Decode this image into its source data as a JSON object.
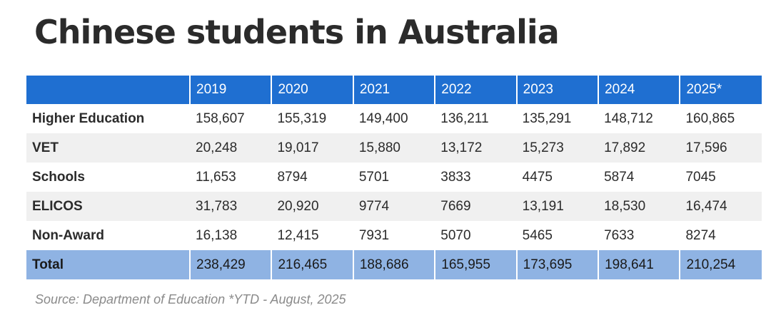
{
  "title": "Chinese students in Australia",
  "table": {
    "header": [
      "",
      "2019",
      "2020",
      "2021",
      "2022",
      "2023",
      "2024",
      "2025*"
    ],
    "rows": [
      {
        "label": "Higher Education",
        "values": [
          "158,607",
          "155,319",
          "149,400",
          "136,211",
          "135,291",
          "148,712",
          "160,865"
        ]
      },
      {
        "label": "VET",
        "values": [
          "20,248",
          "19,017",
          "15,880",
          "13,172",
          "15,273",
          "17,892",
          "17,596"
        ]
      },
      {
        "label": "Schools",
        "values": [
          "11,653",
          "8794",
          "5701",
          "3833",
          "4475",
          "5874",
          "7045"
        ]
      },
      {
        "label": "ELICOS",
        "values": [
          "31,783",
          "20,920",
          "9774",
          "7669",
          "13,191",
          "18,530",
          "16,474"
        ]
      },
      {
        "label": "Non-Award",
        "values": [
          "16,138",
          "12,415",
          "7931",
          "5070",
          "5465",
          "7633",
          "8274"
        ]
      }
    ],
    "total": {
      "label": "Total",
      "values": [
        "238,429",
        "216,465",
        "188,686",
        "165,955",
        "173,695",
        "198,641",
        "210,254"
      ]
    }
  },
  "source": "Source: Department of Education *YTD - August, 2025",
  "colors": {
    "header_bg": "#1f6fd1",
    "total_bg": "#8fb3e3",
    "alt_row_bg": "#f0f0f0"
  }
}
